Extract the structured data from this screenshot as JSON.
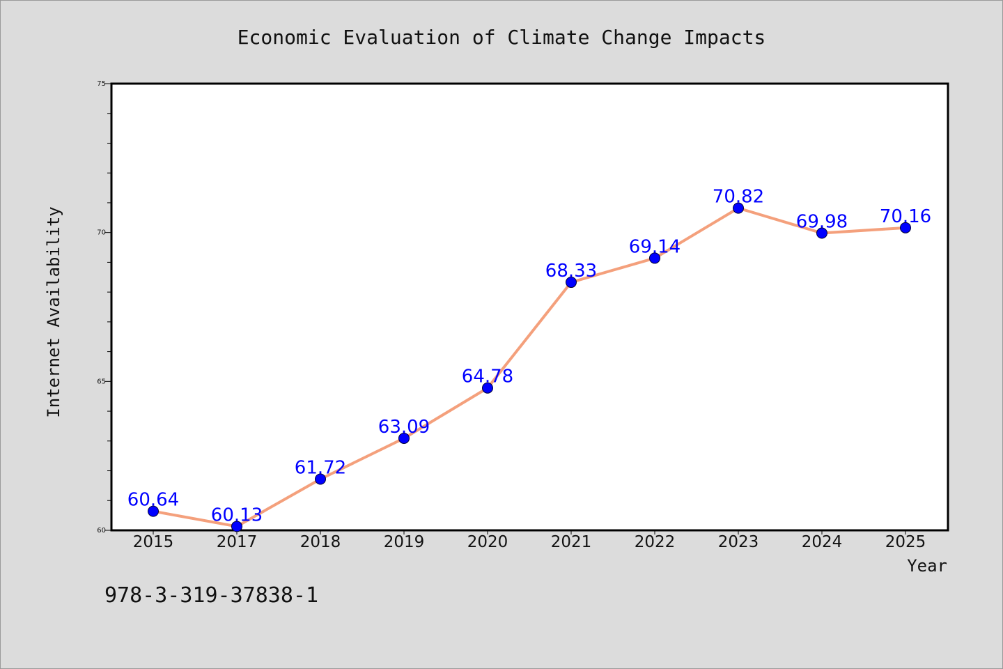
{
  "chart_data": {
    "type": "line",
    "title": "Economic Evaluation of Climate Change Impacts",
    "xlabel": "Year",
    "ylabel": "Internet Availability",
    "categories": [
      "2015",
      "2017",
      "2018",
      "2019",
      "2020",
      "2021",
      "2022",
      "2023",
      "2024",
      "2025"
    ],
    "series": [
      {
        "values": [
          60.64,
          60.13,
          61.72,
          63.09,
          64.78,
          68.33,
          69.14,
          70.82,
          69.98,
          70.16
        ],
        "data_labels": [
          "60.64",
          "60.13",
          "61.72",
          "63.09",
          "64.78",
          "68.33",
          "69.14",
          "70.82",
          "69.98",
          "70.16"
        ]
      }
    ],
    "ylim": [
      60,
      75
    ],
    "yticks": [
      60,
      65,
      70,
      75
    ],
    "ytick_labels": [
      "60",
      "65",
      "70",
      "75"
    ],
    "y_minor_step": 1,
    "grid": false,
    "legend": "none"
  },
  "footnote": "978-3-319-37838-1",
  "colors": {
    "background": "#dcdcdc",
    "plot_area": "#ffffff",
    "line": "#f4a07c",
    "marker": "#0000ff",
    "data_label": "#0000ff",
    "axis": "#000000"
  }
}
